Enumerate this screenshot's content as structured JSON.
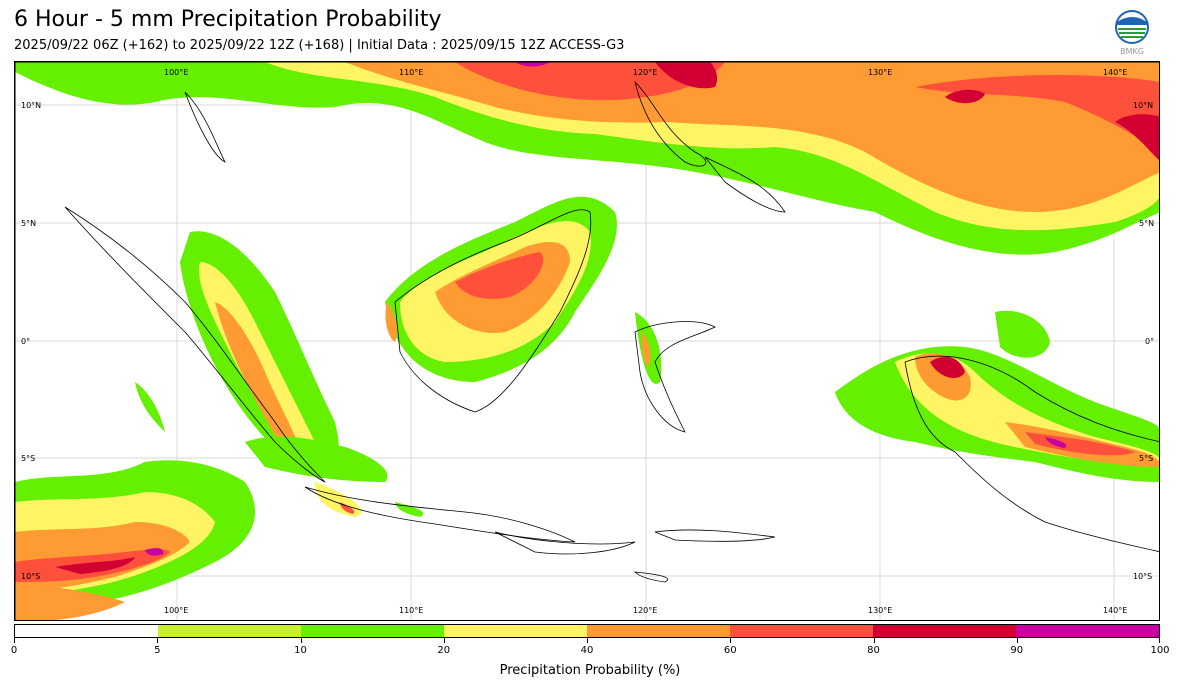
{
  "header": {
    "title": "6 Hour - 5 mm Precipitation Probability",
    "subtitle": "2025/09/22 06Z (+162) to 2025/09/22 12Z (+168) | Initial Data : 2025/09/15 12Z ACCESS-G3"
  },
  "logo": {
    "text": "BMKG",
    "icon": "bmkg-logo"
  },
  "map": {
    "extent": {
      "lon": [
        95,
        144
      ],
      "lat": [
        -12,
        12
      ]
    },
    "lon_labels": [
      "100°E",
      "110°E",
      "120°E",
      "130°E",
      "140°E"
    ],
    "lat_labels": [
      "10°N",
      "5°N",
      "0°",
      "5°S",
      "10°S"
    ]
  },
  "colorbar": {
    "ticks": [
      "0",
      "5",
      "10",
      "20",
      "40",
      "60",
      "80",
      "90",
      "100"
    ],
    "colors": [
      "#ffffff",
      "#c8f032",
      "#64f000",
      "#fff564",
      "#ff9b32",
      "#ff503c",
      "#d20032",
      "#c800a0"
    ],
    "label": "Precipitation Probability (%)"
  }
}
